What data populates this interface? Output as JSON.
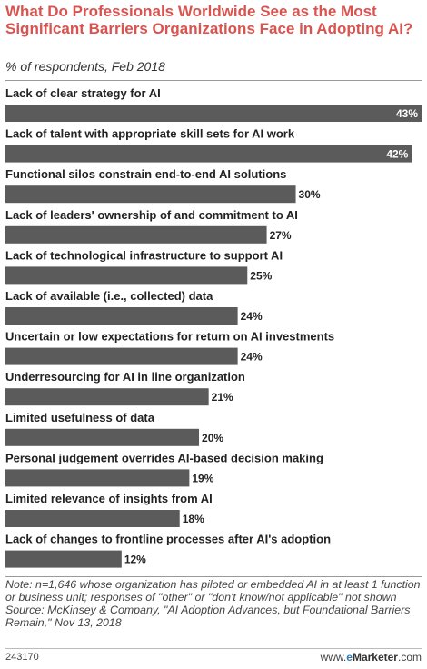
{
  "header": {
    "title": "What Do Professionals Worldwide See as the Most Significant Barriers Organizations Face in Adopting AI?",
    "subtitle": "% of respondents, Feb 2018"
  },
  "chart_data": {
    "type": "bar",
    "orientation": "horizontal",
    "title": "What Do Professionals Worldwide See as the Most Significant Barriers Organizations Face in Adopting AI?",
    "subtitle": "% of respondents, Feb 2018",
    "xlim": [
      0,
      43
    ],
    "categories": [
      "Lack of clear strategy for AI",
      "Lack of talent with appropriate skill sets for AI work",
      "Functional silos constrain end-to-end AI solutions",
      "Lack of leaders' ownership of and commitment to AI",
      "Lack of technological infrastructure to support AI",
      "Lack of available (i.e., collected) data",
      "Uncertain or low expectations for return on AI investments",
      "Underresourcing for AI in line organization",
      "Limited usefulness of data",
      "Personal judgement overrides AI-based decision making",
      "Limited relevance of insights from AI",
      "Lack of changes to frontline processes after AI's adoption"
    ],
    "values": [
      43,
      42,
      30,
      27,
      25,
      24,
      24,
      21,
      20,
      19,
      18,
      12
    ],
    "value_labels": [
      "43%",
      "42%",
      "30%",
      "27%",
      "25%",
      "24%",
      "24%",
      "21%",
      "20%",
      "19%",
      "18%",
      "12%"
    ],
    "colors": {
      "bar": "#5b5b5b",
      "label": "#222222",
      "inside_label": "#ffffff"
    }
  },
  "note": {
    "text": "Note: n=1,646 whose organization has piloted or embedded AI in at least 1 function or business unit; responses of \"other\" or \"don't know/not applicable\" not shown",
    "source": "Source: McKinsey & Company, \"AI Adoption Advances, but Foundational Barriers Remain,\" Nov 13, 2018"
  },
  "footer": {
    "id": "243170",
    "brand_prefix": "www.",
    "brand_accent": "e",
    "brand_rest": "Marketer",
    "brand_suffix": ".com"
  }
}
